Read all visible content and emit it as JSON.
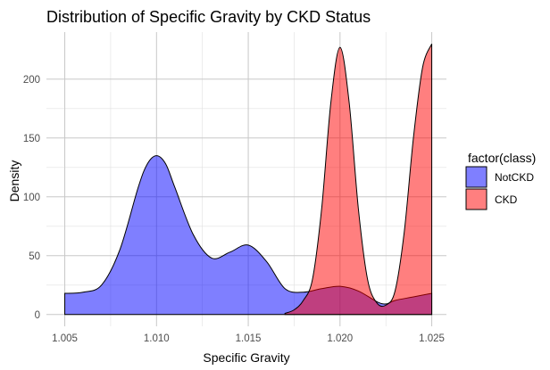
{
  "chart_data": {
    "type": "area",
    "title": "Distribution of Specific Gravity by CKD Status",
    "xlabel": "Specific Gravity",
    "ylabel": "Density",
    "xlim": [
      1.004,
      1.0258
    ],
    "ylim": [
      -10,
      240
    ],
    "x_ticks": [
      1.005,
      1.01,
      1.015,
      1.02,
      1.025
    ],
    "x_tick_labels": [
      "1.005",
      "1.010",
      "1.015",
      "1.020",
      "1.025"
    ],
    "y_ticks": [
      0,
      50,
      100,
      150,
      200
    ],
    "y_tick_labels": [
      "0",
      "50",
      "100",
      "150",
      "200"
    ],
    "grid": true,
    "legend": {
      "title": "factor(class)",
      "position": "right"
    },
    "series": [
      {
        "name": "NotCKD",
        "color": "#0000ff",
        "x": [
          1.005,
          1.006,
          1.007,
          1.008,
          1.009,
          1.0095,
          1.01,
          1.0105,
          1.011,
          1.012,
          1.013,
          1.014,
          1.015,
          1.016,
          1.017,
          1.018,
          1.019,
          1.02,
          1.021,
          1.022,
          1.0225,
          1.023,
          1.024,
          1.025
        ],
        "values": [
          18,
          19,
          25,
          55,
          108,
          128,
          135,
          128,
          108,
          68,
          48,
          53,
          59,
          45,
          22,
          19,
          22,
          24,
          20,
          11,
          9,
          12,
          15,
          18
        ]
      },
      {
        "name": "CKD",
        "color": "#ff0000",
        "x": [
          1.017,
          1.0175,
          1.018,
          1.0185,
          1.019,
          1.0195,
          1.02,
          1.0205,
          1.021,
          1.0215,
          1.022,
          1.0225,
          1.023,
          1.0235,
          1.024,
          1.0245,
          1.025
        ],
        "values": [
          1,
          4,
          12,
          30,
          90,
          180,
          227,
          180,
          90,
          30,
          10,
          8,
          20,
          70,
          150,
          210,
          230
        ]
      }
    ]
  }
}
